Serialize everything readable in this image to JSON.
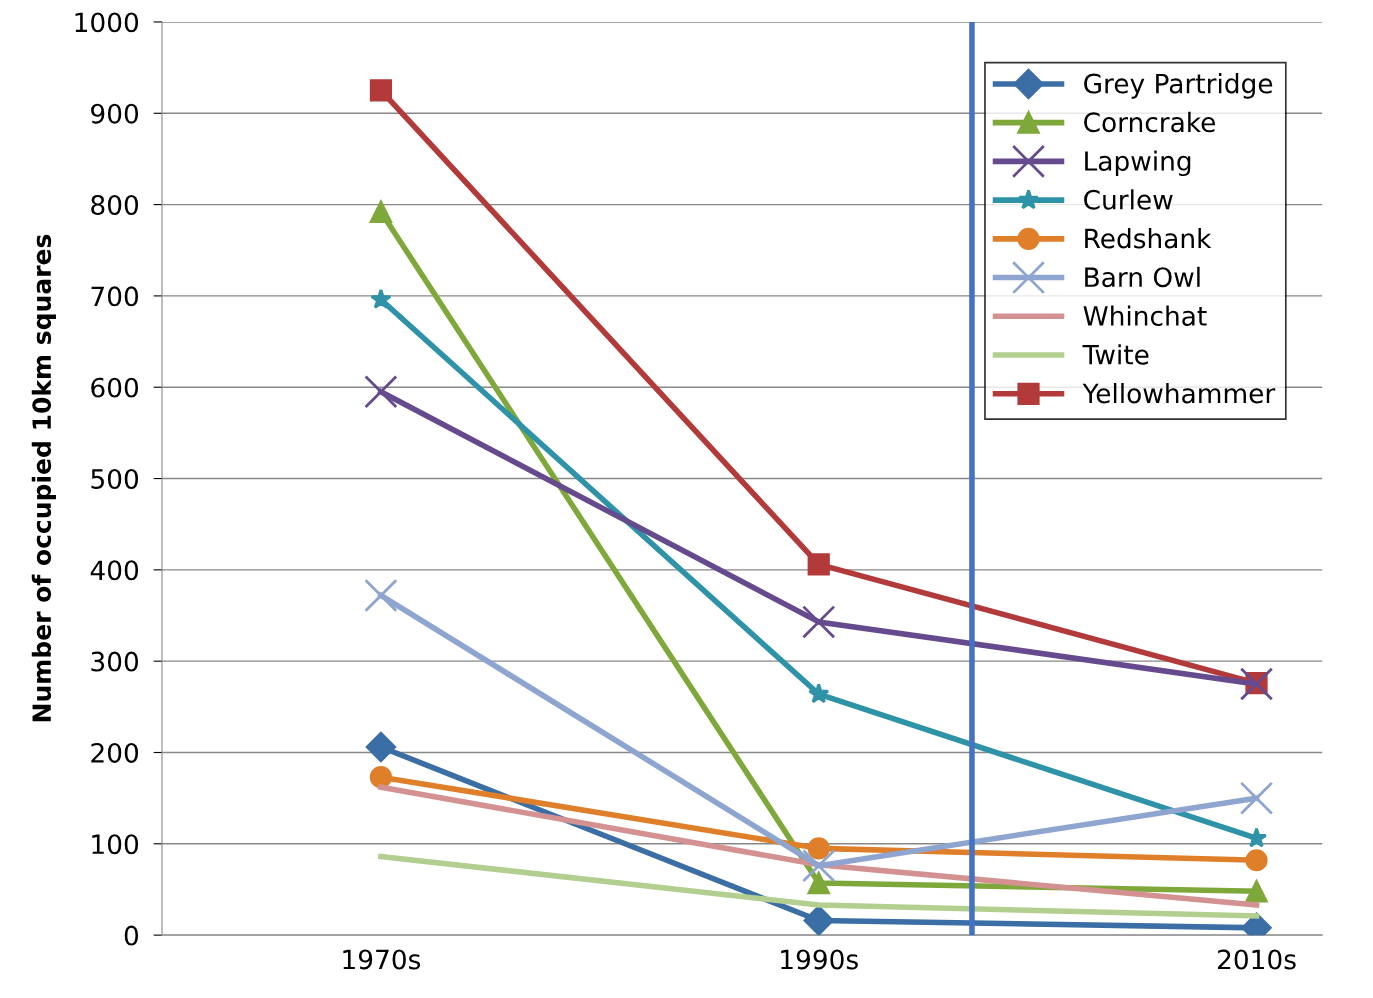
{
  "chart_data": {
    "type": "line",
    "ylabel": "Number of occupied 10km squares",
    "x": [
      1970,
      1990,
      2010
    ],
    "xlim": [
      1960,
      2013
    ],
    "xticks": [
      {
        "value": 1970,
        "label": "1970s"
      },
      {
        "value": 1990,
        "label": "1990s"
      },
      {
        "value": 2010,
        "label": "2010s"
      }
    ],
    "ylim": [
      0,
      1000
    ],
    "yticks": [
      0,
      100,
      200,
      300,
      400,
      500,
      600,
      700,
      800,
      900,
      1000
    ],
    "grid": "y",
    "legend": "top right",
    "line_style": "solid",
    "ref_lines": [
      {
        "axis": "x",
        "value": 1997,
        "color": "#4472c4"
      }
    ],
    "series": [
      {
        "name": "Grey Partridge",
        "color": "#3a6ea5",
        "marker": "diamond",
        "values": [
          206,
          16,
          8
        ]
      },
      {
        "name": "Corncrake",
        "color": "#7ea83a",
        "marker": "triangle",
        "values": [
          792,
          57,
          48
        ]
      },
      {
        "name": "Lapwing",
        "color": "#664a8e",
        "marker": "cross",
        "values": [
          595,
          343,
          275
        ]
      },
      {
        "name": "Curlew",
        "color": "#2f93a8",
        "marker": "star",
        "values": [
          696,
          264,
          106
        ]
      },
      {
        "name": "Redshank",
        "color": "#e07f2a",
        "marker": "circle",
        "values": [
          173,
          95,
          82
        ]
      },
      {
        "name": "Barn Owl",
        "color": "#8ea5cf",
        "marker": "cross",
        "values": [
          372,
          76,
          150
        ]
      },
      {
        "name": "Whinchat",
        "color": "#d39291",
        "marker": "none",
        "values": [
          162,
          77,
          33
        ]
      },
      {
        "name": "Twite",
        "color": "#b3cf8f",
        "marker": "none",
        "values": [
          86,
          33,
          21
        ]
      },
      {
        "name": "Yellowhammer",
        "color": "#b33a3a",
        "marker": "square",
        "values": [
          925,
          406,
          276
        ]
      }
    ]
  }
}
